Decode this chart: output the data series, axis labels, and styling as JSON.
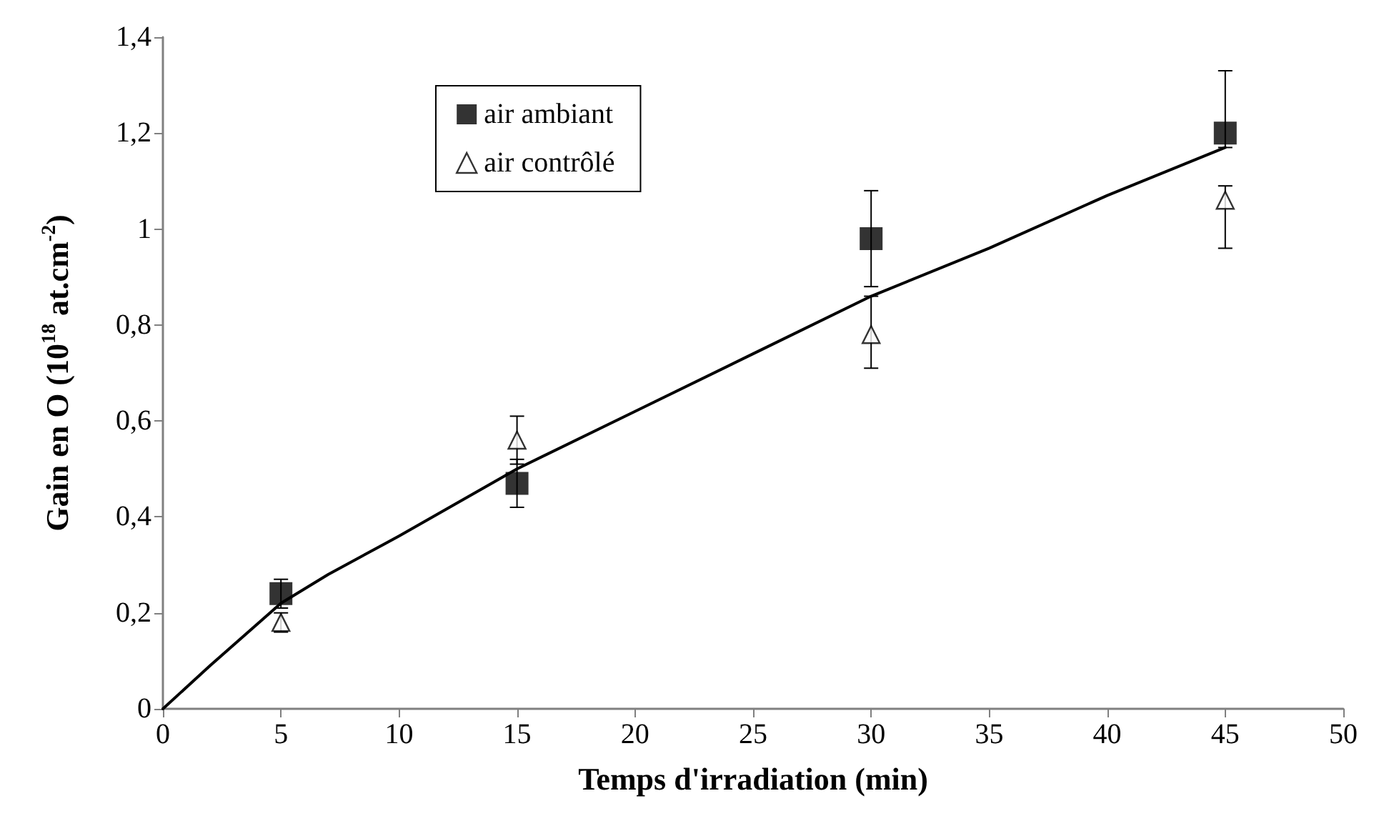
{
  "chart_data": {
    "type": "scatter",
    "xlabel": "Temps d'irradiation (min)",
    "ylabel": "Gain en O (10$^{18}$ at.cm$^{-2}$)",
    "x": [
      5,
      15,
      30,
      45
    ],
    "series": [
      {
        "name": "air ambiant",
        "color": "#000000",
        "marker": "square",
        "values": [
          0.24,
          0.47,
          0.98,
          1.2
        ],
        "errors": [
          0.03,
          [
            0.42,
            0.52
          ],
          [
            0.88,
            1.08
          ],
          [
            1.17,
            1.33
          ]
        ]
      },
      {
        "name": "air contrôlé",
        "color": "#000000",
        "marker": "triangle",
        "values": [
          0.18,
          0.56,
          0.78,
          1.06
        ],
        "errors": [
          0.02,
          [
            0.51,
            0.61
          ],
          [
            0.71,
            0.86
          ],
          [
            0.96,
            1.09
          ]
        ]
      },
      {
        "type": "line",
        "color": "#000000",
        "marker": "none",
        "x": [
          0,
          2,
          5,
          7,
          10,
          15,
          20,
          25,
          30,
          35,
          40,
          45
        ],
        "values": [
          0,
          0.09,
          0.22,
          0.28,
          0.36,
          0.5,
          0.62,
          0.74,
          0.86,
          0.96,
          1.07,
          1.17
        ]
      }
    ],
    "xlim": [
      0,
      50
    ],
    "xticks": [
      0,
      5,
      10,
      15,
      20,
      25,
      30,
      35,
      40,
      45,
      50
    ],
    "ylim": [
      0,
      1.4
    ],
    "yticks": [
      0,
      {
        "value": 0.2,
        "label": "0,2"
      },
      {
        "value": 0.4,
        "label": "0,4"
      },
      {
        "value": 0.6,
        "label": "0,6"
      },
      {
        "value": 0.8,
        "label": "0,8"
      },
      1,
      {
        "value": 1.2,
        "label": "1,2"
      },
      {
        "value": 1.4,
        "label": "1,4"
      }
    ],
    "grid": false,
    "legend": "top"
  }
}
